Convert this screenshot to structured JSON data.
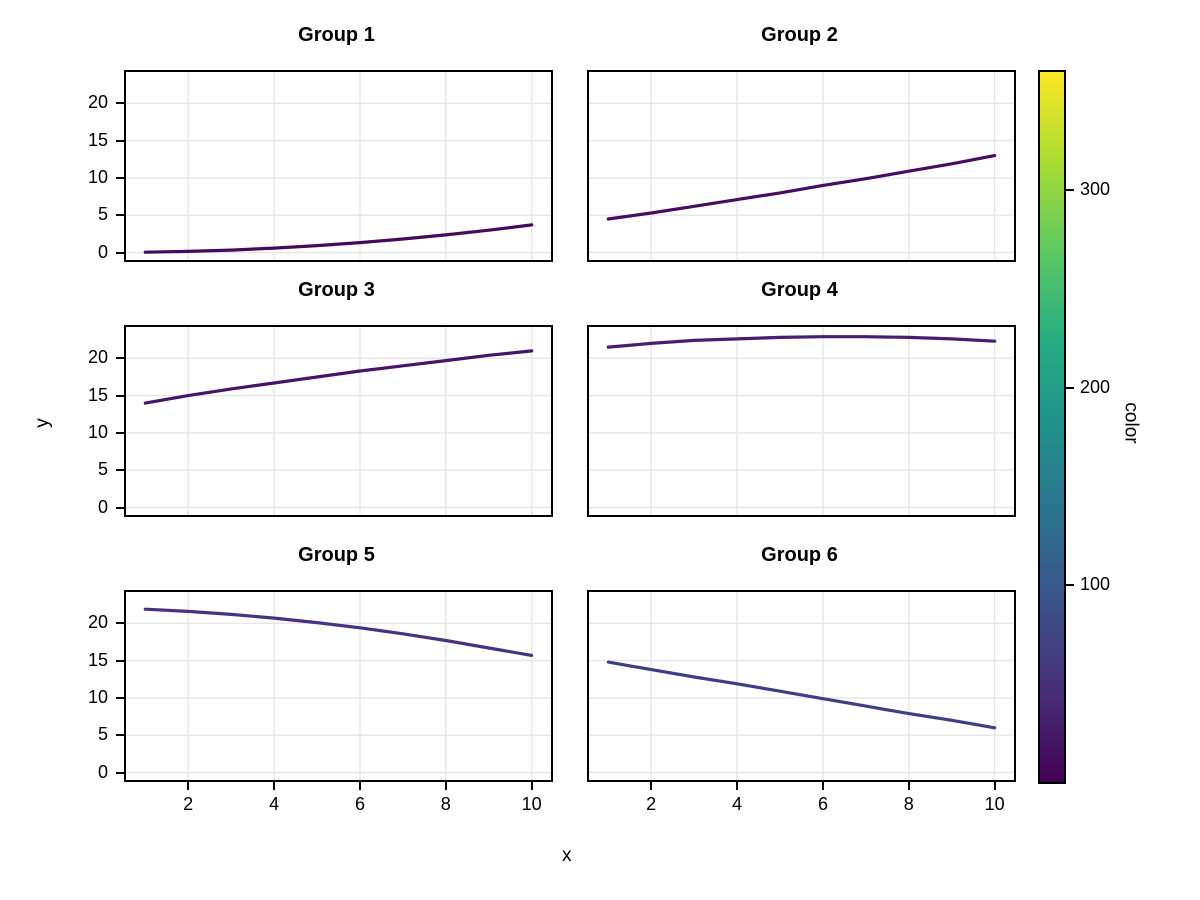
{
  "axis": {
    "x_label": "x",
    "y_label": "y"
  },
  "colorbar": {
    "label": "color",
    "ticks": [
      100,
      200,
      300
    ],
    "limits": [
      0,
      360
    ],
    "colormap": "viridis",
    "top_color": "#fde725",
    "bottom_color": "#440154"
  },
  "chart_data": {
    "type": "line",
    "title": "",
    "xlabel": "x",
    "ylabel": "y",
    "x_ticks": [
      2,
      4,
      6,
      8,
      10
    ],
    "y_ticks": [
      0,
      5,
      10,
      15,
      20
    ],
    "xlim": [
      0.55,
      10.45
    ],
    "ylim": [
      -1,
      24.2
    ],
    "grid": true,
    "grid_color": "#e6e6e6",
    "x": [
      1,
      2,
      3,
      4,
      5,
      6,
      7,
      8,
      9,
      10
    ],
    "facets": [
      {
        "title": "Group 1",
        "color": "#460a5d",
        "y": [
          0.04,
          0.15,
          0.33,
          0.59,
          0.93,
          1.33,
          1.81,
          2.37,
          3.0,
          3.7
        ]
      },
      {
        "title": "Group 2",
        "color": "#470d60",
        "y": [
          4.5,
          5.3,
          6.2,
          7.1,
          8.0,
          9.0,
          9.9,
          10.9,
          11.9,
          13.0
        ]
      },
      {
        "title": "Group 3",
        "color": "#481467",
        "y": [
          14.0,
          15.0,
          15.9,
          16.7,
          17.5,
          18.3,
          19.0,
          19.7,
          20.4,
          21.0
        ]
      },
      {
        "title": "Group 4",
        "color": "#481d6f",
        "y": [
          21.5,
          22.0,
          22.4,
          22.6,
          22.8,
          22.9,
          22.9,
          22.8,
          22.6,
          22.3
        ]
      },
      {
        "title": "Group 5",
        "color": "#46327e",
        "y": [
          21.9,
          21.6,
          21.2,
          20.7,
          20.1,
          19.4,
          18.6,
          17.7,
          16.7,
          15.7
        ]
      },
      {
        "title": "Group 6",
        "color": "#3f3e85",
        "y": [
          14.8,
          13.8,
          12.8,
          11.9,
          10.9,
          9.9,
          8.9,
          7.9,
          7.0,
          6.0
        ]
      }
    ]
  }
}
